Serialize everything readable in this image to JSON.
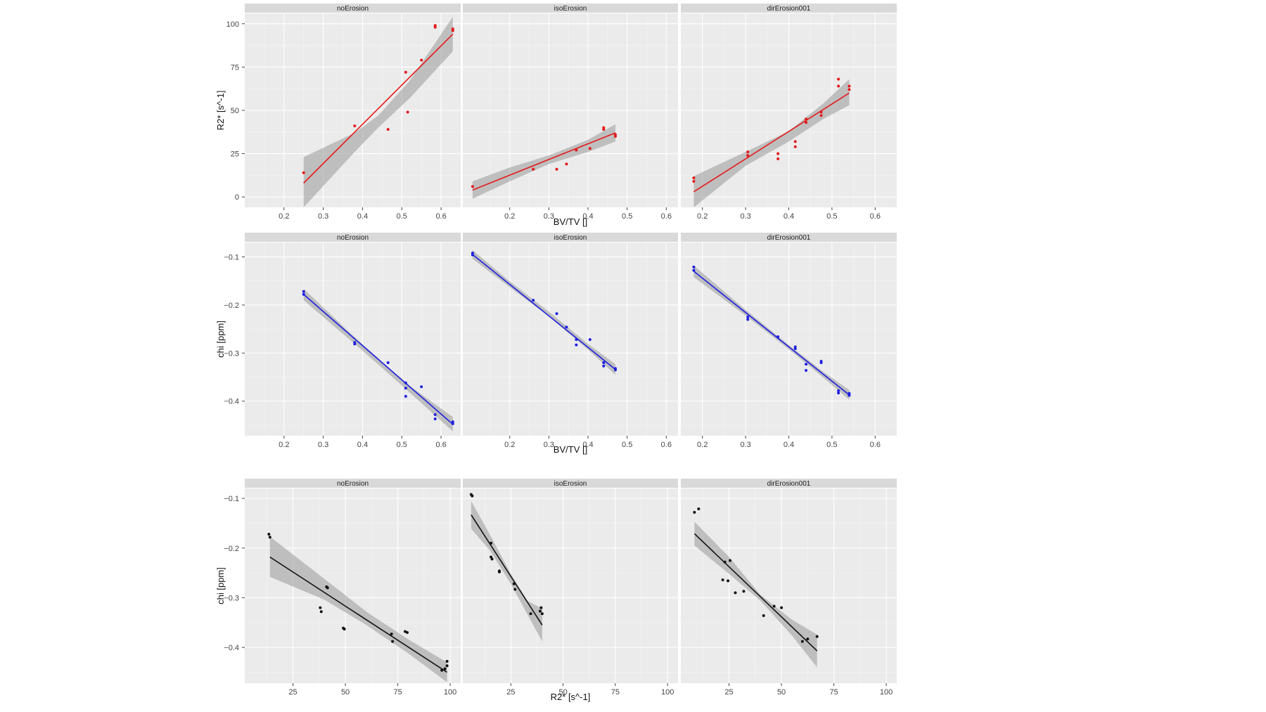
{
  "chart_data": [
    {
      "type": "scatter",
      "ylabel": "R2* [s^-1]",
      "xlabel": "BV/TV []",
      "point_color": "#e31a1c",
      "line_color": "#e31a1c",
      "ylim": [
        -6,
        106
      ],
      "yticks": [
        "0",
        "25",
        "50",
        "75",
        "100"
      ],
      "ytick_values": [
        0,
        25,
        50,
        75,
        100
      ],
      "facets": [
        {
          "title": "noErosion",
          "xlim": [
            0.1,
            0.65
          ],
          "xticks": [
            "0.2",
            "0.3",
            "0.4",
            "0.5",
            "0.6"
          ],
          "xtick_values": [
            0.2,
            0.3,
            0.4,
            0.5,
            0.6
          ],
          "points": [
            [
              0.25,
              14
            ],
            [
              0.38,
              41
            ],
            [
              0.465,
              39
            ],
            [
              0.51,
              72
            ],
            [
              0.515,
              49
            ],
            [
              0.55,
              79
            ],
            [
              0.585,
              98
            ],
            [
              0.585,
              99
            ],
            [
              0.63,
              96
            ],
            [
              0.63,
              97
            ]
          ],
          "fit": {
            "x": [
              0.25,
              0.63
            ],
            "y": [
              8,
              94
            ]
          },
          "band": {
            "x": [
              0.25,
              0.38,
              0.44,
              0.52,
              0.63
            ],
            "lower": [
              -6,
              26,
              40,
              57,
              84
            ],
            "upper": [
              23,
              37,
              47,
              67,
              104
            ]
          }
        },
        {
          "title": "isoErosion",
          "xlim": [
            0.08,
            0.63
          ],
          "xticks": [
            "0.2",
            "0.3",
            "0.4",
            "0.5",
            "0.6"
          ],
          "xtick_values": [
            0.2,
            0.3,
            0.4,
            0.5,
            0.6
          ],
          "points": [
            [
              0.105,
              6
            ],
            [
              0.26,
              16
            ],
            [
              0.32,
              16
            ],
            [
              0.345,
              19
            ],
            [
              0.37,
              27
            ],
            [
              0.405,
              28
            ],
            [
              0.44,
              40
            ],
            [
              0.44,
              39
            ],
            [
              0.47,
              36
            ],
            [
              0.47,
              35
            ]
          ],
          "fit": {
            "x": [
              0.105,
              0.47
            ],
            "y": [
              4,
              37
            ]
          },
          "band": {
            "x": [
              0.105,
              0.2,
              0.3,
              0.4,
              0.47
            ],
            "lower": [
              -1,
              9,
              19,
              26,
              32
            ],
            "upper": [
              9,
              17,
              24,
              33,
              42
            ]
          }
        },
        {
          "title": "dirErosion001",
          "xlim": [
            0.15,
            0.65
          ],
          "xticks": [
            "0.2",
            "0.3",
            "0.4",
            "0.5",
            "0.6"
          ],
          "xtick_values": [
            0.2,
            0.3,
            0.4,
            0.5,
            0.6
          ],
          "points": [
            [
              0.18,
              9
            ],
            [
              0.18,
              11
            ],
            [
              0.305,
              24
            ],
            [
              0.305,
              26
            ],
            [
              0.375,
              22
            ],
            [
              0.375,
              25
            ],
            [
              0.415,
              29
            ],
            [
              0.415,
              32
            ],
            [
              0.44,
              43
            ],
            [
              0.44,
              45
            ],
            [
              0.475,
              47
            ],
            [
              0.475,
              49
            ],
            [
              0.515,
              64
            ],
            [
              0.515,
              68
            ],
            [
              0.54,
              62
            ],
            [
              0.54,
              64
            ]
          ],
          "fit": {
            "x": [
              0.18,
              0.54
            ],
            "y": [
              3,
              60
            ]
          },
          "band": {
            "x": [
              0.18,
              0.3,
              0.4,
              0.48,
              0.54
            ],
            "lower": [
              -6,
              18,
              32,
              45,
              53
            ],
            "upper": [
              12,
              26,
              38,
              54,
              68
            ]
          }
        }
      ]
    },
    {
      "type": "scatter",
      "ylabel": "chi [ppm]",
      "xlabel": "BV/TV []",
      "point_color": "#1f1fe0",
      "line_color": "#1f1fe0",
      "ylim": [
        -0.472,
        -0.07
      ],
      "yticks": [
        "−0.1",
        "−0.2",
        "−0.3",
        "−0.4"
      ],
      "ytick_values": [
        -0.1,
        -0.2,
        -0.3,
        -0.4
      ],
      "facets": [
        {
          "title": "noErosion",
          "xlim": [
            0.1,
            0.65
          ],
          "xticks": [
            "0.2",
            "0.3",
            "0.4",
            "0.5",
            "0.6"
          ],
          "xtick_values": [
            0.2,
            0.3,
            0.4,
            0.5,
            0.6
          ],
          "points": [
            [
              0.25,
              -0.172
            ],
            [
              0.25,
              -0.178
            ],
            [
              0.38,
              -0.278
            ],
            [
              0.38,
              -0.281
            ],
            [
              0.465,
              -0.32
            ],
            [
              0.51,
              -0.362
            ],
            [
              0.51,
              -0.373
            ],
            [
              0.51,
              -0.39
            ],
            [
              0.55,
              -0.37
            ],
            [
              0.585,
              -0.428
            ],
            [
              0.585,
              -0.437
            ],
            [
              0.63,
              -0.443
            ],
            [
              0.63,
              -0.447
            ]
          ],
          "fit": {
            "x": [
              0.25,
              0.63
            ],
            "y": [
              -0.178,
              -0.448
            ]
          },
          "band": {
            "x": [
              0.25,
              0.38,
              0.45,
              0.52,
              0.63
            ],
            "lower": [
              -0.19,
              -0.281,
              -0.331,
              -0.382,
              -0.463
            ],
            "upper": [
              -0.166,
              -0.267,
              -0.318,
              -0.368,
              -0.433
            ]
          }
        },
        {
          "title": "isoErosion",
          "xlim": [
            0.08,
            0.63
          ],
          "xticks": [
            "0.2",
            "0.3",
            "0.4",
            "0.5",
            "0.6"
          ],
          "xtick_values": [
            0.2,
            0.3,
            0.4,
            0.5,
            0.6
          ],
          "points": [
            [
              0.105,
              -0.092
            ],
            [
              0.105,
              -0.096
            ],
            [
              0.26,
              -0.19
            ],
            [
              0.32,
              -0.218
            ],
            [
              0.345,
              -0.246
            ],
            [
              0.37,
              -0.272
            ],
            [
              0.37,
              -0.283
            ],
            [
              0.405,
              -0.272
            ],
            [
              0.44,
              -0.32
            ],
            [
              0.44,
              -0.327
            ],
            [
              0.47,
              -0.332
            ],
            [
              0.47,
              -0.335
            ]
          ],
          "fit": {
            "x": [
              0.105,
              0.47
            ],
            "y": [
              -0.095,
              -0.334
            ]
          },
          "band": {
            "x": [
              0.105,
              0.2,
              0.3,
              0.4,
              0.47
            ],
            "lower": [
              -0.104,
              -0.163,
              -0.224,
              -0.293,
              -0.345
            ],
            "upper": [
              -0.086,
              -0.151,
              -0.214,
              -0.281,
              -0.323
            ]
          }
        },
        {
          "title": "dirErosion001",
          "xlim": [
            0.15,
            0.65
          ],
          "xticks": [
            "0.2",
            "0.3",
            "0.4",
            "0.5",
            "0.6"
          ],
          "xtick_values": [
            0.2,
            0.3,
            0.4,
            0.5,
            0.6
          ],
          "points": [
            [
              0.18,
              -0.121
            ],
            [
              0.18,
              -0.128
            ],
            [
              0.305,
              -0.225
            ],
            [
              0.305,
              -0.23
            ],
            [
              0.375,
              -0.266
            ],
            [
              0.415,
              -0.287
            ],
            [
              0.415,
              -0.291
            ],
            [
              0.44,
              -0.323
            ],
            [
              0.44,
              -0.336
            ],
            [
              0.475,
              -0.317
            ],
            [
              0.475,
              -0.32
            ],
            [
              0.515,
              -0.378
            ],
            [
              0.515,
              -0.383
            ],
            [
              0.54,
              -0.384
            ],
            [
              0.54,
              -0.388
            ]
          ],
          "fit": {
            "x": [
              0.18,
              0.54
            ],
            "y": [
              -0.13,
              -0.387
            ]
          },
          "band": {
            "x": [
              0.18,
              0.3,
              0.4,
              0.48,
              0.54
            ],
            "lower": [
              -0.142,
              -0.222,
              -0.292,
              -0.351,
              -0.397
            ],
            "upper": [
              -0.118,
              -0.21,
              -0.283,
              -0.339,
              -0.377
            ]
          }
        }
      ]
    },
    {
      "type": "scatter",
      "ylabel": "chi [ppm]",
      "xlabel": "R2* [s^-1]",
      "point_color": "#111111",
      "line_color": "#111111",
      "ylim": [
        -0.472,
        -0.08
      ],
      "yticks": [
        "−0.1",
        "−0.2",
        "−0.3",
        "−0.4"
      ],
      "ytick_values": [
        -0.1,
        -0.2,
        -0.3,
        -0.4
      ],
      "facets": [
        {
          "title": "noErosion",
          "xlim": [
            2,
            105
          ],
          "xticks": [
            "25",
            "50",
            "75",
            "100"
          ],
          "xtick_values": [
            25,
            50,
            75,
            100
          ],
          "points": [
            [
              13.5,
              -0.172
            ],
            [
              14,
              -0.178
            ],
            [
              38,
              -0.32
            ],
            [
              38.5,
              -0.328
            ],
            [
              41,
              -0.278
            ],
            [
              41.5,
              -0.28
            ],
            [
              49,
              -0.361
            ],
            [
              49.5,
              -0.363
            ],
            [
              72,
              -0.373
            ],
            [
              72.5,
              -0.388
            ],
            [
              78.5,
              -0.368
            ],
            [
              79.5,
              -0.37
            ],
            [
              96,
              -0.446
            ],
            [
              97.5,
              -0.443
            ],
            [
              98.5,
              -0.428
            ],
            [
              98.5,
              -0.437
            ]
          ],
          "fit": {
            "x": [
              14,
              98.5
            ],
            "y": [
              -0.218,
              -0.45
            ]
          },
          "band": {
            "x": [
              14,
              40,
              60,
              80,
              98.5
            ],
            "lower": [
              -0.258,
              -0.304,
              -0.355,
              -0.412,
              -0.47
            ],
            "upper": [
              -0.177,
              -0.262,
              -0.328,
              -0.384,
              -0.43
            ]
          }
        },
        {
          "title": "isoErosion",
          "xlim": [
            2,
            105
          ],
          "xticks": [
            "25",
            "50",
            "75",
            "100"
          ],
          "xtick_values": [
            25,
            50,
            75,
            100
          ],
          "points": [
            [
              6,
              -0.092
            ],
            [
              6.5,
              -0.095
            ],
            [
              15.5,
              -0.19
            ],
            [
              15.5,
              -0.218
            ],
            [
              16,
              -0.222
            ],
            [
              19.5,
              -0.246
            ],
            [
              19.5,
              -0.248
            ],
            [
              26.5,
              -0.272
            ],
            [
              27,
              -0.283
            ],
            [
              34.5,
              -0.332
            ],
            [
              39,
              -0.327
            ],
            [
              39.5,
              -0.32
            ],
            [
              40,
              -0.332
            ]
          ],
          "fit": {
            "x": [
              6,
              40
            ],
            "y": [
              -0.133,
              -0.355
            ]
          },
          "band": {
            "x": [
              6,
              15,
              25,
              33,
              40
            ],
            "lower": [
              -0.161,
              -0.205,
              -0.272,
              -0.334,
              -0.388
            ],
            "upper": [
              -0.105,
              -0.173,
              -0.252,
              -0.306,
              -0.322
            ]
          }
        },
        {
          "title": "dirErosion001",
          "xlim": [
            2,
            105
          ],
          "xticks": [
            "25",
            "50",
            "75",
            "100"
          ],
          "xtick_values": [
            25,
            50,
            75,
            100
          ],
          "points": [
            [
              8.5,
              -0.128
            ],
            [
              10.5,
              -0.121
            ],
            [
              22,
              -0.264
            ],
            [
              23,
              -0.228
            ],
            [
              24.5,
              -0.266
            ],
            [
              25.5,
              -0.225
            ],
            [
              28,
              -0.29
            ],
            [
              32,
              -0.287
            ],
            [
              41.5,
              -0.336
            ],
            [
              46.5,
              -0.317
            ],
            [
              50,
              -0.32
            ],
            [
              60,
              -0.388
            ],
            [
              62.5,
              -0.383
            ],
            [
              67,
              -0.378
            ]
          ],
          "fit": {
            "x": [
              8.5,
              67
            ],
            "y": [
              -0.171,
              -0.407
            ]
          },
          "band": {
            "x": [
              8.5,
              25,
              40,
              55,
              67
            ],
            "lower": [
              -0.195,
              -0.252,
              -0.306,
              -0.376,
              -0.44
            ],
            "upper": [
              -0.147,
              -0.218,
              -0.294,
              -0.344,
              -0.374
            ]
          }
        }
      ]
    }
  ]
}
